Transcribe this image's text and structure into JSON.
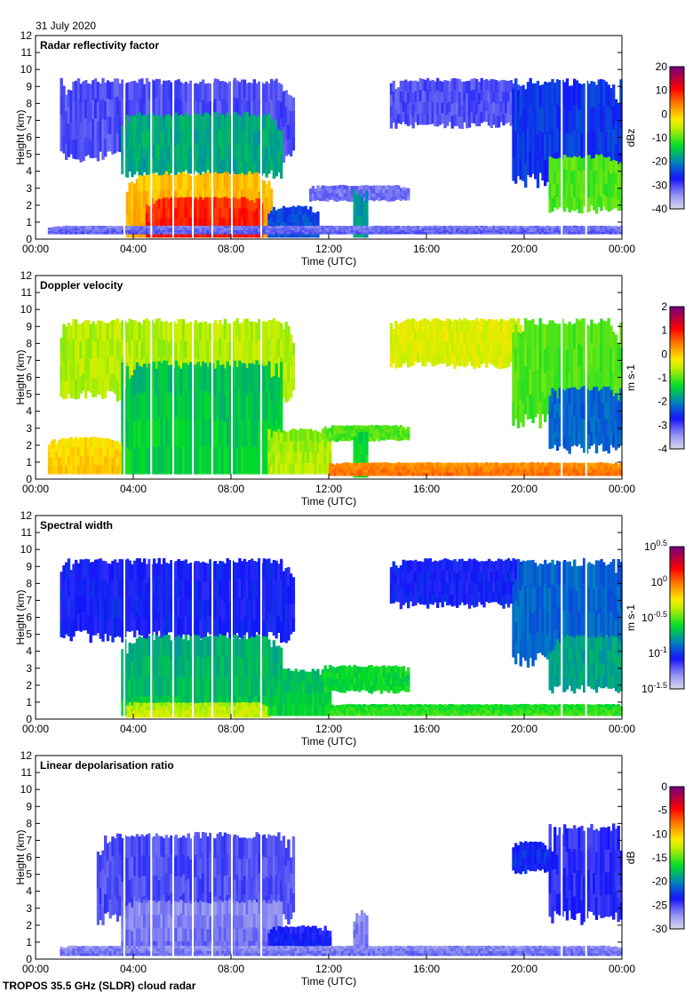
{
  "date": "31 July 2020",
  "footer": "TROPOS 35.5 GHz (SLDR) cloud radar",
  "chart_data": [
    {
      "type": "heatmap",
      "title": "Radar reflectivity factor",
      "xlabel": "Time (UTC)",
      "ylabel": "Height (km)",
      "xticks": [
        "00:00",
        "04:00",
        "08:00",
        "12:00",
        "16:00",
        "20:00",
        "00:00"
      ],
      "yticks": [
        "0",
        "1",
        "2",
        "3",
        "4",
        "5",
        "6",
        "7",
        "8",
        "9",
        "10",
        "11",
        "12"
      ],
      "xlim": [
        0,
        24
      ],
      "ylim": [
        0,
        12
      ],
      "colorbar": {
        "unit": "dBz",
        "range": [
          -40,
          20
        ],
        "ticks": [
          "20",
          "10",
          "0",
          "-10",
          "-20",
          "-30",
          "-40"
        ]
      },
      "regions": [
        {
          "t": [
            1.0,
            10.5
          ],
          "h": [
            4.5,
            9.5
          ],
          "v": -30
        },
        {
          "t": [
            3.5,
            10.0
          ],
          "h": [
            3.5,
            7.5
          ],
          "v": -17
        },
        {
          "t": [
            3.7,
            9.6
          ],
          "h": [
            0.1,
            4.0
          ],
          "v": 0
        },
        {
          "t": [
            4.5,
            9.2
          ],
          "h": [
            0.1,
            2.5
          ],
          "v": 8
        },
        {
          "t": [
            9.5,
            11.5
          ],
          "h": [
            0.1,
            2.0
          ],
          "v": -25
        },
        {
          "t": [
            11.2,
            15.2
          ],
          "h": [
            2.2,
            3.2
          ],
          "v": -32
        },
        {
          "t": [
            13.0,
            13.5
          ],
          "h": [
            0.1,
            3.0
          ],
          "v": -20
        },
        {
          "t": [
            0.5,
            24.0
          ],
          "h": [
            0.3,
            0.8
          ],
          "v": -33
        },
        {
          "t": [
            14.5,
            20.0
          ],
          "h": [
            6.5,
            9.5
          ],
          "v": -30
        },
        {
          "t": [
            19.5,
            24.0
          ],
          "h": [
            3.0,
            9.5
          ],
          "v": -25
        },
        {
          "t": [
            21.0,
            24.0
          ],
          "h": [
            1.5,
            5.0
          ],
          "v": -10
        }
      ]
    },
    {
      "type": "heatmap",
      "title": "Doppler velocity",
      "xlabel": "Time (UTC)",
      "ylabel": "Height (km)",
      "xticks": [
        "00:00",
        "04:00",
        "08:00",
        "12:00",
        "16:00",
        "20:00",
        "00:00"
      ],
      "yticks": [
        "0",
        "1",
        "2",
        "3",
        "4",
        "5",
        "6",
        "7",
        "8",
        "9",
        "10",
        "11",
        "12"
      ],
      "xlim": [
        0,
        24
      ],
      "ylim": [
        0,
        12
      ],
      "colorbar": {
        "unit": "m s-1",
        "range": [
          -4,
          2
        ],
        "ticks": [
          "2",
          "1",
          "0",
          "-1",
          "-2",
          "-3",
          "-4"
        ]
      },
      "regions": [
        {
          "t": [
            1.0,
            10.5
          ],
          "h": [
            4.5,
            9.5
          ],
          "v": -0.6
        },
        {
          "t": [
            3.5,
            10.0
          ],
          "h": [
            0.3,
            7.0
          ],
          "v": -1.6
        },
        {
          "t": [
            0.5,
            3.5
          ],
          "h": [
            0.3,
            2.5
          ],
          "v": -0.2
        },
        {
          "t": [
            9.5,
            12.0
          ],
          "h": [
            0.3,
            3.0
          ],
          "v": -0.8
        },
        {
          "t": [
            11.8,
            15.2
          ],
          "h": [
            2.2,
            3.2
          ],
          "v": -1.0
        },
        {
          "t": [
            13.0,
            13.5
          ],
          "h": [
            0.1,
            3.0
          ],
          "v": -1.5
        },
        {
          "t": [
            12.0,
            24.0
          ],
          "h": [
            0.2,
            1.0
          ],
          "v": 0.3
        },
        {
          "t": [
            14.5,
            20.0
          ],
          "h": [
            6.5,
            9.5
          ],
          "v": -0.4
        },
        {
          "t": [
            19.5,
            24.0
          ],
          "h": [
            3.0,
            9.5
          ],
          "v": -1.0
        },
        {
          "t": [
            21.0,
            24.0
          ],
          "h": [
            1.5,
            5.5
          ],
          "v": -2.2
        }
      ]
    },
    {
      "type": "heatmap",
      "title": "Spectral width",
      "xlabel": "Time (UTC)",
      "ylabel": "Height (km)",
      "xticks": [
        "00:00",
        "04:00",
        "08:00",
        "12:00",
        "16:00",
        "20:00",
        "00:00"
      ],
      "yticks": [
        "0",
        "1",
        "2",
        "3",
        "4",
        "5",
        "6",
        "7",
        "8",
        "9",
        "10",
        "11",
        "12"
      ],
      "xlim": [
        0,
        24
      ],
      "ylim": [
        0,
        12
      ],
      "colorbar": {
        "unit": "m s-1",
        "range": [
          -1.5,
          0.5
        ],
        "log_base": 10,
        "ticks": [
          "10^0.5",
          "10^0",
          "10^-0.5",
          "10^-1",
          "10^-1.5"
        ]
      },
      "regions": [
        {
          "t": [
            1.0,
            10.5
          ],
          "h": [
            4.5,
            9.5
          ],
          "v": -1.05
        },
        {
          "t": [
            3.5,
            10.0
          ],
          "h": [
            0.2,
            5.0
          ],
          "v": -0.75
        },
        {
          "t": [
            3.7,
            9.5
          ],
          "h": [
            0.1,
            1.0
          ],
          "v": -0.4
        },
        {
          "t": [
            9.5,
            12.0
          ],
          "h": [
            0.2,
            3.0
          ],
          "v": -0.7
        },
        {
          "t": [
            11.8,
            15.2
          ],
          "h": [
            1.5,
            3.2
          ],
          "v": -0.6
        },
        {
          "t": [
            12.0,
            24.0
          ],
          "h": [
            0.2,
            0.9
          ],
          "v": -0.6
        },
        {
          "t": [
            14.5,
            20.0
          ],
          "h": [
            6.5,
            9.5
          ],
          "v": -1.05
        },
        {
          "t": [
            19.5,
            24.0
          ],
          "h": [
            3.0,
            9.5
          ],
          "v": -0.9
        },
        {
          "t": [
            21.0,
            24.0
          ],
          "h": [
            1.5,
            5.0
          ],
          "v": -0.75
        }
      ]
    },
    {
      "type": "heatmap",
      "title": "Linear depolarisation ratio",
      "xlabel": "Time (UTC)",
      "ylabel": "Height (km)",
      "xticks": [
        "00:00",
        "04:00",
        "08:00",
        "12:00",
        "16:00",
        "20:00",
        "00:00"
      ],
      "yticks": [
        "0",
        "1",
        "2",
        "3",
        "4",
        "5",
        "6",
        "7",
        "8",
        "9",
        "10",
        "11",
        "12"
      ],
      "xlim": [
        0,
        24
      ],
      "ylim": [
        0,
        12
      ],
      "colorbar": {
        "unit": "dB",
        "range": [
          -30,
          0
        ],
        "ticks": [
          "0",
          "-5",
          "-10",
          "-15",
          "-20",
          "-25",
          "-30"
        ]
      },
      "regions": [
        {
          "t": [
            2.5,
            10.5
          ],
          "h": [
            2.0,
            7.5
          ],
          "v": -25
        },
        {
          "t": [
            3.5,
            10.0
          ],
          "h": [
            0.3,
            3.5
          ],
          "v": -27
        },
        {
          "t": [
            9.5,
            12.0
          ],
          "h": [
            0.3,
            2.0
          ],
          "v": -24
        },
        {
          "t": [
            13.0,
            13.5
          ],
          "h": [
            0.3,
            3.0
          ],
          "v": -27
        },
        {
          "t": [
            1.0,
            24.0
          ],
          "h": [
            0.2,
            0.8
          ],
          "v": -27
        },
        {
          "t": [
            21.0,
            24.0
          ],
          "h": [
            2.0,
            8.0
          ],
          "v": -24
        },
        {
          "t": [
            19.5,
            21.0
          ],
          "h": [
            5.0,
            7.0
          ],
          "v": -23
        }
      ]
    }
  ]
}
